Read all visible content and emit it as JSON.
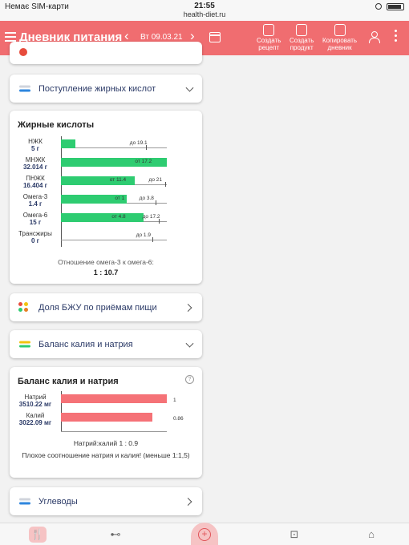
{
  "status": {
    "carrier": "Немає SIM-карти",
    "time": "21:55",
    "url": "health-diet.ru"
  },
  "header": {
    "title": "Дневник питания",
    "date": "Вт 09.03.21",
    "tools": [
      {
        "line1": "Создать",
        "line2": "рецепт"
      },
      {
        "line1": "Создать",
        "line2": "продукт"
      },
      {
        "line1": "Копировать",
        "line2": "дневник"
      }
    ]
  },
  "accordions": {
    "fatty_acids_intake": "Поступление жирных кислот",
    "bju_share": "Доля БЖУ по приёмам пищи",
    "potassium_sodium": "Баланс калия и натрия",
    "carbs": "Углеводы"
  },
  "fatty_acids": {
    "title": "Жирные кислоты",
    "rows": [
      {
        "name": "НЖК",
        "value": "5 г",
        "fill": 0.14,
        "label_from": "",
        "label_to": "до 19.1",
        "to_pos": 0.65
      },
      {
        "name": "МНЖК",
        "value": "32.014 г",
        "fill": 1.0,
        "label_from": "от 17.2",
        "label_to": "",
        "to_pos": 0
      },
      {
        "name": "ПНЖК",
        "value": "16.404 г",
        "fill": 0.7,
        "label_from": "от 11.4",
        "label_to": "до 21",
        "from_pos": 0.46,
        "to_pos": 0.83
      },
      {
        "name": "Омега-3",
        "value": "1.4 г",
        "fill": 0.62,
        "label_from": "от 1",
        "label_to": "до 3.8",
        "from_pos": 0.51,
        "to_pos": 0.74
      },
      {
        "name": "Омега-6",
        "value": "15 г",
        "fill": 0.78,
        "label_from": "от 4.8",
        "label_to": "до 17.2",
        "from_pos": 0.48,
        "to_pos": 0.77
      },
      {
        "name": "Трансжиры",
        "value": "0 г",
        "fill": 0.0,
        "label_from": "",
        "label_to": "до 1.9",
        "to_pos": 0.71
      }
    ],
    "ratio_text": "Отношение омега-3 к омега-6:",
    "ratio_value": "1 : 10.7"
  },
  "k_na": {
    "title": "Баланс калия и натрия",
    "rows": [
      {
        "name": "Натрий",
        "value": "3510.22 мг",
        "fill": 1.0,
        "ratio": "1"
      },
      {
        "name": "Калий",
        "value": "3022.09 мг",
        "fill": 0.86,
        "ratio": "0.86"
      }
    ],
    "ratio_text": "Натрий:калий 1 : 0.9",
    "warning": "Плохое соотношение натрия и калия! (меньше 1:1,5)"
  },
  "colors": {
    "accent": "#f06d70",
    "green": "#2ecc71",
    "red": "#f57277",
    "navy": "#2b3a67"
  }
}
